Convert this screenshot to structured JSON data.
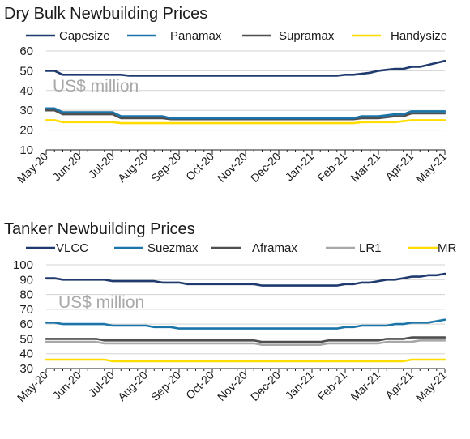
{
  "chart_data": [
    {
      "type": "line",
      "title": "Dry Bulk Newbuilding Prices",
      "unit_label": "US$ million",
      "ylim": [
        10,
        60
      ],
      "yticks": [
        10,
        20,
        30,
        40,
        50,
        60
      ],
      "grid": true,
      "legend": "top",
      "categories": [
        "May-20",
        "Jun-20",
        "Jul-20",
        "Aug-20",
        "Sep-20",
        "Oct-20",
        "Nov-20",
        "Dec-20",
        "Jan-21",
        "Feb-21",
        "Mar-21",
        "Apr-21",
        "May-21"
      ],
      "x": [
        0,
        0.25,
        0.5,
        0.75,
        1,
        1.25,
        1.5,
        1.75,
        2,
        2.25,
        2.5,
        2.75,
        3,
        3.25,
        3.5,
        3.75,
        4,
        4.25,
        4.5,
        4.75,
        5,
        5.25,
        5.5,
        5.75,
        6,
        6.25,
        6.5,
        6.75,
        7,
        7.25,
        7.5,
        7.75,
        8,
        8.25,
        8.5,
        8.75,
        9,
        9.25,
        9.5,
        9.75,
        10,
        10.25,
        10.5,
        10.75,
        11,
        11.25,
        11.5,
        11.75,
        12
      ],
      "series": [
        {
          "name": "Capesize",
          "color": "#1f3a6e",
          "values": [
            50,
            50,
            48,
            48,
            48,
            48,
            48,
            48,
            48,
            48,
            47.5,
            47.5,
            47.5,
            47.5,
            47.5,
            47.5,
            47.5,
            47.5,
            47.5,
            47.5,
            47.5,
            47.5,
            47.5,
            47.5,
            47.5,
            47.5,
            47.5,
            47.5,
            47.5,
            47.5,
            47.5,
            47.5,
            47.5,
            47.5,
            47.5,
            47.5,
            48,
            48,
            48.5,
            49,
            50,
            50.5,
            51,
            51,
            52,
            52,
            53,
            54,
            55
          ]
        },
        {
          "name": "Panamax",
          "color": "#1b75a9",
          "values": [
            31,
            31,
            29,
            29,
            29,
            29,
            29,
            29,
            29,
            27,
            27,
            27,
            27,
            27,
            27,
            26,
            26,
            26,
            26,
            26,
            26,
            26,
            26,
            26,
            26,
            26,
            26,
            26,
            26,
            26,
            26,
            26,
            26,
            26,
            26,
            26,
            26,
            26,
            27,
            27,
            27,
            27.5,
            28,
            28,
            29.5,
            29.5,
            29.5,
            29.5,
            29.5
          ]
        },
        {
          "name": "Supramax",
          "color": "#4f4f4f",
          "values": [
            30,
            30,
            28,
            28,
            28,
            28,
            28,
            28,
            28,
            26,
            26,
            26,
            26,
            26,
            26,
            25.5,
            25.5,
            25.5,
            25.5,
            25.5,
            25.5,
            25.5,
            25.5,
            25.5,
            25.5,
            25.5,
            25.5,
            25.5,
            25.5,
            25.5,
            25.5,
            25.5,
            25.5,
            25.5,
            25.5,
            25.5,
            25.5,
            25.5,
            26,
            26,
            26,
            26.5,
            27,
            27,
            28.5,
            28.5,
            28.5,
            28.5,
            28.5
          ]
        },
        {
          "name": "Handysize",
          "color": "#ffdd00",
          "values": [
            25,
            25,
            24,
            24,
            24,
            24,
            24,
            24,
            24,
            23.5,
            23.5,
            23.5,
            23.5,
            23.5,
            23.5,
            23.5,
            23.5,
            23.5,
            23.5,
            23.5,
            23.5,
            23.5,
            23.5,
            23.5,
            23.5,
            23.5,
            23.5,
            23.5,
            23.5,
            23.5,
            23.5,
            23.5,
            23.5,
            23.5,
            23.5,
            23.5,
            23.5,
            23.5,
            24,
            24,
            24,
            24,
            24,
            24.5,
            25,
            25,
            25,
            25,
            25
          ]
        }
      ]
    },
    {
      "type": "line",
      "title": "Tanker Newbuilding Prices",
      "unit_label": "US$ million",
      "ylim": [
        30,
        100
      ],
      "yticks": [
        30,
        40,
        50,
        60,
        70,
        80,
        90,
        100
      ],
      "grid": true,
      "legend": "top",
      "categories": [
        "May-20",
        "Jun-20",
        "Jul-20",
        "Aug-20",
        "Sep-20",
        "Oct-20",
        "Nov-20",
        "Dec-20",
        "Jan-21",
        "Feb-21",
        "Mar-21",
        "Apr-21",
        "May-21"
      ],
      "x": [
        0,
        0.25,
        0.5,
        0.75,
        1,
        1.25,
        1.5,
        1.75,
        2,
        2.25,
        2.5,
        2.75,
        3,
        3.25,
        3.5,
        3.75,
        4,
        4.25,
        4.5,
        4.75,
        5,
        5.25,
        5.5,
        5.75,
        6,
        6.25,
        6.5,
        6.75,
        7,
        7.25,
        7.5,
        7.75,
        8,
        8.25,
        8.5,
        8.75,
        9,
        9.25,
        9.5,
        9.75,
        10,
        10.25,
        10.5,
        10.75,
        11,
        11.25,
        11.5,
        11.75,
        12
      ],
      "series": [
        {
          "name": "VLCC",
          "color": "#1f3a6e",
          "values": [
            91,
            91,
            90,
            90,
            90,
            90,
            90,
            90,
            89,
            89,
            89,
            89,
            89,
            89,
            88,
            88,
            88,
            87,
            87,
            87,
            87,
            87,
            87,
            87,
            87,
            87,
            86,
            86,
            86,
            86,
            86,
            86,
            86,
            86,
            86,
            86,
            87,
            87,
            88,
            88,
            89,
            90,
            90,
            91,
            92,
            92,
            93,
            93,
            94
          ]
        },
        {
          "name": "Suezmax",
          "color": "#1b75a9",
          "values": [
            61,
            61,
            60,
            60,
            60,
            60,
            60,
            60,
            59,
            59,
            59,
            59,
            59,
            58,
            58,
            58,
            57,
            57,
            57,
            57,
            57,
            57,
            57,
            57,
            57,
            57,
            57,
            57,
            57,
            57,
            57,
            57,
            57,
            57,
            57,
            57,
            58,
            58,
            59,
            59,
            59,
            59,
            60,
            60,
            61,
            61,
            61,
            62,
            63
          ]
        },
        {
          "name": "Aframax",
          "color": "#4f4f4f",
          "values": [
            50,
            50,
            50,
            50,
            50,
            50,
            50,
            49,
            49,
            49,
            49,
            49,
            49,
            49,
            49,
            49,
            49,
            49,
            49,
            49,
            49,
            49,
            49,
            49,
            49,
            49,
            48,
            48,
            48,
            48,
            48,
            48,
            48,
            48,
            49,
            49,
            49,
            49,
            49,
            49,
            49,
            50,
            50,
            50,
            51,
            51,
            51,
            51,
            51
          ]
        },
        {
          "name": "LR1",
          "color": "#a8a8a8",
          "values": [
            48,
            48,
            48,
            48,
            48,
            48,
            48,
            47,
            47,
            47,
            47,
            47,
            47,
            47,
            47,
            47,
            47,
            47,
            47,
            47,
            47,
            47,
            47,
            47,
            47,
            47,
            46,
            46,
            46,
            46,
            46,
            46,
            46,
            46,
            47,
            47,
            47,
            47,
            47,
            47,
            47,
            48,
            48,
            48,
            48,
            49,
            49,
            49,
            49
          ]
        },
        {
          "name": "MR",
          "color": "#ffdd00",
          "values": [
            36,
            36,
            36,
            36,
            36,
            36,
            36,
            36,
            35,
            35,
            35,
            35,
            35,
            35,
            35,
            35,
            35,
            35,
            35,
            35,
            35,
            35,
            35,
            35,
            35,
            35,
            35,
            35,
            35,
            35,
            35,
            35,
            35,
            35,
            35,
            35,
            35,
            35,
            35,
            35,
            35,
            35,
            35,
            35,
            36,
            36,
            36,
            36,
            36
          ]
        }
      ]
    }
  ]
}
